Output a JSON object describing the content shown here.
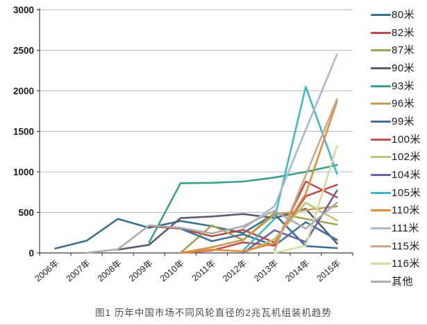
{
  "page": {
    "caption": "图1 历年中国市场不同风轮直径的2兆瓦机组装机趋势"
  },
  "chart_data": {
    "type": "line",
    "title": "图1 历年中国市场不同风轮直径的2兆瓦机组装机趋势",
    "x_labels": [
      "2006年",
      "2007年",
      "2008年",
      "2009年",
      "2010年",
      "2011年",
      "2012年",
      "2013年",
      "2014年",
      "2015年"
    ],
    "ylim": [
      0,
      3000
    ],
    "yticks": [
      0,
      500,
      1000,
      1500,
      2000,
      2500,
      3000
    ],
    "grid": "horizontal",
    "legend_position": "right",
    "axis_color": "#3f3f3f",
    "grid_color": "#b7b7b7",
    "series": [
      {
        "name": "80米",
        "color": "#39718C",
        "values": [
          55,
          150,
          420,
          310,
          395,
          330,
          245,
          480,
          85,
          60
        ]
      },
      {
        "name": "82米",
        "color": "#BC4B4A",
        "values": [
          null,
          null,
          null,
          330,
          300,
          205,
          285,
          130,
          700,
          840
        ]
      },
      {
        "name": "87米",
        "color": "#A2A353",
        "values": [
          null,
          null,
          null,
          null,
          0,
          340,
          160,
          495,
          420,
          350
        ]
      },
      {
        "name": "90米",
        "color": "#5B5B72",
        "values": [
          null,
          null,
          40,
          100,
          430,
          450,
          480,
          430,
          545,
          115
        ]
      },
      {
        "name": "93米",
        "color": "#38A089",
        "values": [
          null,
          null,
          null,
          130,
          860,
          865,
          880,
          930,
          1000,
          1085
        ]
      },
      {
        "name": "96米",
        "color": "#C79A51",
        "values": [
          null,
          null,
          null,
          null,
          0,
          70,
          160,
          470,
          530,
          575
        ]
      },
      {
        "name": "99米",
        "color": "#41709F",
        "values": [
          null,
          null,
          null,
          null,
          300,
          145,
          230,
          90,
          380,
          160
        ]
      },
      {
        "name": "100米",
        "color": "#C0504D",
        "values": [
          null,
          null,
          null,
          null,
          0,
          30,
          130,
          90,
          880,
          685
        ]
      },
      {
        "name": "102米",
        "color": "#B6C873",
        "values": [
          null,
          null,
          null,
          null,
          null,
          null,
          0,
          170,
          620,
          400
        ]
      },
      {
        "name": "104米",
        "color": "#6B61A5",
        "values": [
          null,
          null,
          null,
          null,
          null,
          null,
          0,
          280,
          135,
          770
        ]
      },
      {
        "name": "105米",
        "color": "#3FB9C9",
        "values": [
          null,
          null,
          null,
          null,
          null,
          null,
          30,
          420,
          2050,
          975
        ]
      },
      {
        "name": "110米",
        "color": "#E68C3C",
        "values": [
          null,
          null,
          null,
          null,
          0,
          40,
          20,
          120,
          730,
          1870
        ]
      },
      {
        "name": "111米",
        "color": "#A7BACE",
        "values": [
          null,
          null,
          null,
          null,
          null,
          null,
          300,
          575,
          1520,
          2450
        ]
      },
      {
        "name": "115米",
        "color": "#C9A988",
        "values": [
          null,
          null,
          null,
          null,
          null,
          null,
          null,
          30,
          960,
          1900
        ]
      },
      {
        "name": "116米",
        "color": "#D2DDA3",
        "values": [
          null,
          null,
          null,
          null,
          null,
          null,
          null,
          0,
          90,
          1320
        ]
      },
      {
        "name": "其他",
        "color": "#ACACAC",
        "values": [
          null,
          0,
          45,
          340,
          310,
          240,
          330,
          520,
          300,
          620
        ]
      }
    ]
  }
}
